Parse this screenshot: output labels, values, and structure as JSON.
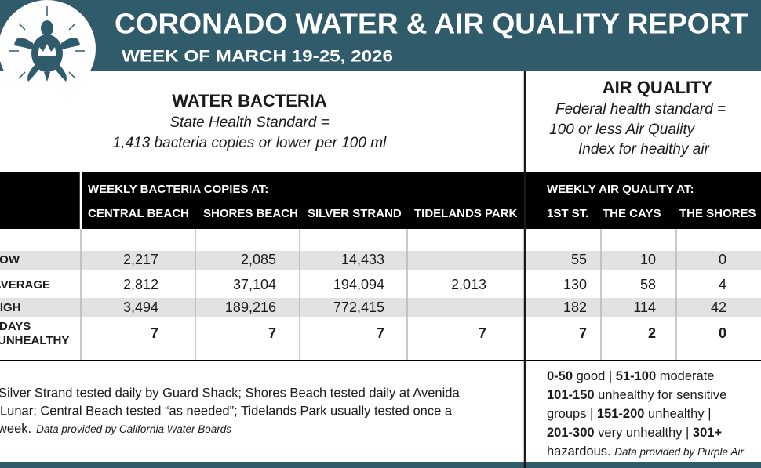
{
  "header": {
    "title": "CORONADO WATER & AIR QUALITY REPORT",
    "subtitle": "WEEK OF MARCH 19-25, 2026"
  },
  "water": {
    "heading": "WATER BACTERIA",
    "standard": [
      "State Health Standard  =",
      "1,413 bacteria copies or lower per 100 ml"
    ],
    "band_title": "WEEKLY BACTERIA COPIES AT:",
    "columns": [
      "CENTRAL BEACH",
      "SHORES BEACH",
      "SILVER STRAND",
      "TIDELANDS PARK"
    ]
  },
  "air": {
    "heading": "AIR QUALITY",
    "standard": [
      "Federal health standard =",
      "100 or less Air Quality",
      "Index for healthy air"
    ],
    "band_title": "WEEKLY AIR QUALITY AT:",
    "columns": [
      "1ST ST.",
      "THE CAYS",
      "THE SHORES"
    ]
  },
  "table": {
    "rows": [
      {
        "label": [
          "LOW"
        ],
        "water": [
          "2,217",
          "2,085",
          "14,433",
          null
        ],
        "air": [
          "55",
          "10",
          "0"
        ]
      },
      {
        "label": [
          "AVERAGE"
        ],
        "water": [
          "2,812",
          "37,104",
          "194,094",
          "2,013"
        ],
        "air": [
          "130",
          "58",
          "4"
        ]
      },
      {
        "label": [
          "HIGH"
        ],
        "water": [
          "3,494",
          "189,216",
          "772,415",
          null
        ],
        "air": [
          "182",
          "114",
          "42"
        ]
      },
      {
        "label": [
          "DAYS",
          "UNHEALTHY"
        ],
        "water": [
          "7",
          "7",
          "7",
          "7"
        ],
        "air": [
          "7",
          "2",
          "0"
        ]
      }
    ]
  },
  "water_note": {
    "lines": [
      "Silver Strand tested daily by Guard Shack; Shores Beach tested daily at Avenida",
      "Lunar; Central Beach tested “as needed”; Tidelands Park usually tested once a",
      "week."
    ],
    "source": "Data provided by California Water Boards"
  },
  "air_scale": {
    "lines": [
      [
        "0-50",
        " good | ",
        "51-100",
        " moderate"
      ],
      [
        "101-150",
        " unhealthy for sensitive"
      ],
      [
        "groups | ",
        "151-200",
        " unhealthy |"
      ],
      [
        "201-300",
        " very unhealthy | ",
        "301+"
      ],
      [
        "hazardous. "
      ]
    ],
    "source": "Data provided by Purple Air"
  }
}
